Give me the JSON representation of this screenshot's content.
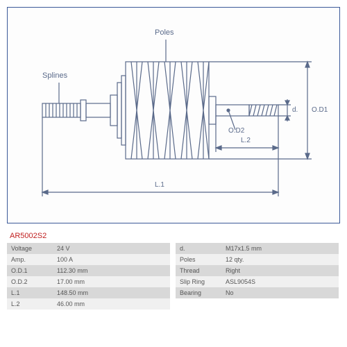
{
  "diagram": {
    "labels": {
      "poles": "Poles",
      "splines": "Splines",
      "od1": "O.D1",
      "od2": "O.D2",
      "d": "d.",
      "l1": "L.1",
      "l2": "L.2"
    },
    "stroke": "#5a6a8a",
    "stroke_width": 1.2
  },
  "part_code": "AR5002S2",
  "specs_left": [
    {
      "label": "Voltage",
      "value": "24 V"
    },
    {
      "label": "Amp.",
      "value": "100 A"
    },
    {
      "label": "O.D.1",
      "value": "112.30 mm"
    },
    {
      "label": "O.D.2",
      "value": "17.00 mm"
    },
    {
      "label": "L.1",
      "value": "148.50 mm"
    },
    {
      "label": "L.2",
      "value": "46.00 mm"
    }
  ],
  "specs_right": [
    {
      "label": "d.",
      "value": "M17x1.5 mm"
    },
    {
      "label": "Poles",
      "value": "12 qty."
    },
    {
      "label": "Thread",
      "value": "Right"
    },
    {
      "label": "Slip Ring",
      "value": "ASL9054S"
    },
    {
      "label": "Bearing",
      "value": "No"
    }
  ]
}
